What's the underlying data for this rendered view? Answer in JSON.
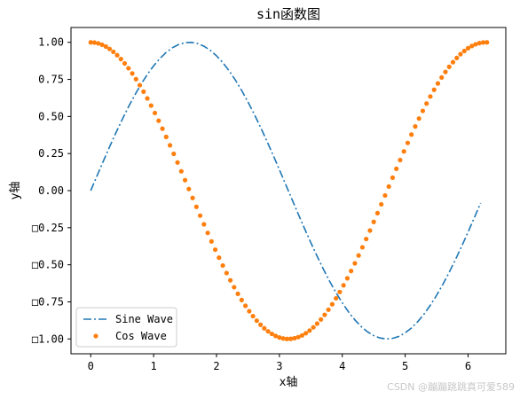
{
  "chart_data": {
    "type": "line",
    "title": "sin函数图",
    "xlabel": "x轴",
    "ylabel": "y轴",
    "xlim": [
      -0.314,
      6.6
    ],
    "ylim": [
      -1.1,
      1.1
    ],
    "xticks": [
      0,
      1,
      2,
      3,
      4,
      5,
      6
    ],
    "xtick_labels": [
      "0",
      "1",
      "2",
      "3",
      "4",
      "5",
      "6"
    ],
    "yticks": [
      1.0,
      0.75,
      0.5,
      0.25,
      0.0,
      -0.25,
      -0.5,
      -0.75,
      -1.0
    ],
    "ytick_labels": [
      "1.00",
      "0.75",
      "0.50",
      "0.25",
      "0.00",
      "□0.25",
      "□0.50",
      "□0.75",
      "□1.00"
    ],
    "legend_placement": "lower-left",
    "grid": false,
    "series": [
      {
        "name": "Sine Wave",
        "function": "sin",
        "x_start": 0.0,
        "x_end": 6.2,
        "x_step": 0.1,
        "style": "dashdot",
        "color": "#1f77b4"
      },
      {
        "name": "Cos Wave",
        "function": "cos",
        "x_start": 0.0,
        "x_end": 6.3,
        "x_step": 0.06,
        "style": "dots",
        "color": "#ff7f0e"
      }
    ]
  },
  "watermark": "CSDN @蹦蹦跳跳真可爱589"
}
